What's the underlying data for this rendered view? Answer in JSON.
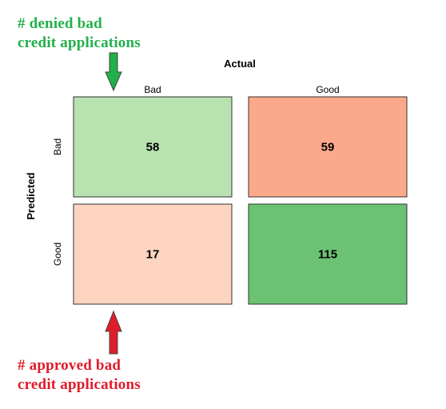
{
  "chart_data": {
    "type": "heatmap",
    "title": "",
    "xlabel": "Actual",
    "ylabel": "Predicted",
    "x_categories": [
      "Bad",
      "Good"
    ],
    "y_categories": [
      "Bad",
      "Good"
    ],
    "cells": [
      {
        "predicted": "Bad",
        "actual": "Bad",
        "value": 58,
        "color": "#b8e2b0"
      },
      {
        "predicted": "Bad",
        "actual": "Good",
        "value": 59,
        "color": "#fba98a"
      },
      {
        "predicted": "Good",
        "actual": "Bad",
        "value": 17,
        "color": "#fcd4c0"
      },
      {
        "predicted": "Good",
        "actual": "Good",
        "value": 115,
        "color": "#6bc273"
      }
    ],
    "annotations": [
      {
        "text": "# denied bad\ncredit applications",
        "color": "#22b04b",
        "arrow": "down",
        "points_to": "Bad/Bad"
      },
      {
        "text": "# approved bad\ncredit applications",
        "color": "#e01b2a",
        "arrow": "up",
        "points_to": "Good/Bad"
      }
    ]
  }
}
